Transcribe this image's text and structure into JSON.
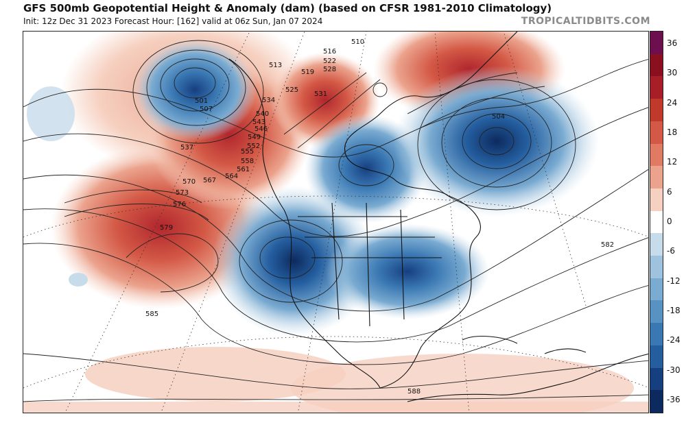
{
  "header": {
    "title": "GFS 500mb Geopotential Height & Anomaly (dam) (based on CFSR 1981-2010 Climatology)",
    "subtitle": "Init: 12z Dec 31 2023   Forecast Hour: [162]   valid at 06z Sun, Jan 07 2024",
    "brand": "TROPICALTIDBITS.COM"
  },
  "colorbar": {
    "tick_labels": [
      "36",
      "30",
      "24",
      "18",
      "12",
      "6",
      "0",
      "-6",
      "-12",
      "-18",
      "-24",
      "-30",
      "-36"
    ],
    "colors": [
      "#6d0f4e",
      "#8a1020",
      "#a81e28",
      "#c0392b",
      "#d35845",
      "#e07a63",
      "#eba38d",
      "#f6d0c0",
      "#ffffff",
      "#c7dceb",
      "#9fc3df",
      "#7aabd1",
      "#5892c3",
      "#3a78b3",
      "#245e9f",
      "#163f80",
      "#0d2a5e"
    ]
  },
  "map": {
    "contour_labels": [
      {
        "text": "510",
        "type": "height"
      },
      {
        "text": "516",
        "type": "height"
      },
      {
        "text": "522",
        "type": "height"
      },
      {
        "text": "528",
        "type": "height"
      },
      {
        "text": "513",
        "type": "height"
      },
      {
        "text": "519",
        "type": "height"
      },
      {
        "text": "525",
        "type": "height"
      },
      {
        "text": "531",
        "type": "height"
      },
      {
        "text": "534",
        "type": "height"
      },
      {
        "text": "537",
        "type": "height"
      },
      {
        "text": "540",
        "type": "height"
      },
      {
        "text": "543",
        "type": "height"
      },
      {
        "text": "546",
        "type": "height"
      },
      {
        "text": "549",
        "type": "height"
      },
      {
        "text": "552",
        "type": "height"
      },
      {
        "text": "555",
        "type": "height"
      },
      {
        "text": "558",
        "type": "height"
      },
      {
        "text": "561",
        "type": "height"
      },
      {
        "text": "564",
        "type": "height"
      },
      {
        "text": "567",
        "type": "height"
      },
      {
        "text": "570",
        "type": "height"
      },
      {
        "text": "573",
        "type": "height"
      },
      {
        "text": "576",
        "type": "height"
      },
      {
        "text": "579",
        "type": "height"
      },
      {
        "text": "582",
        "type": "height"
      },
      {
        "text": "585",
        "type": "height"
      },
      {
        "text": "588",
        "type": "height"
      },
      {
        "text": "501",
        "type": "height"
      },
      {
        "text": "507",
        "type": "height"
      },
      {
        "text": "504",
        "type": "height"
      }
    ]
  }
}
